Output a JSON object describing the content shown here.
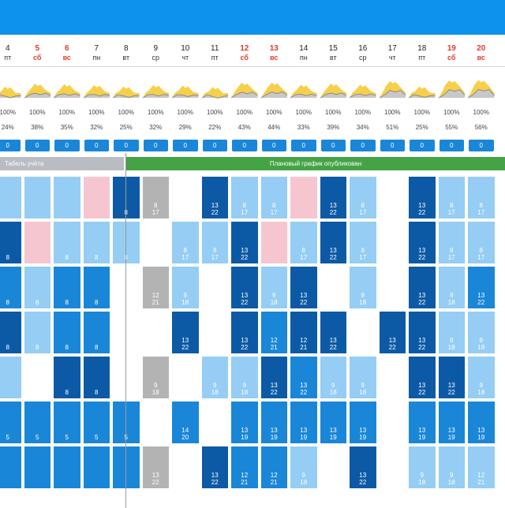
{
  "days": [
    {
      "num": "4",
      "wd": "пт",
      "red": false,
      "p1": "100%",
      "p2": "24%",
      "count": "0"
    },
    {
      "num": "5",
      "wd": "сб",
      "red": true,
      "p1": "100%",
      "p2": "38%",
      "count": "0"
    },
    {
      "num": "6",
      "wd": "вс",
      "red": true,
      "p1": "100%",
      "p2": "35%",
      "count": "0"
    },
    {
      "num": "7",
      "wd": "пн",
      "red": false,
      "p1": "100%",
      "p2": "32%",
      "count": "0"
    },
    {
      "num": "8",
      "wd": "вт",
      "red": false,
      "p1": "100%",
      "p2": "25%",
      "count": "0"
    },
    {
      "num": "9",
      "wd": "ср",
      "red": false,
      "p1": "100%",
      "p2": "32%",
      "count": "0"
    },
    {
      "num": "10",
      "wd": "чт",
      "red": false,
      "p1": "100%",
      "p2": "29%",
      "count": "0"
    },
    {
      "num": "11",
      "wd": "пт",
      "red": false,
      "p1": "100%",
      "p2": "22%",
      "count": "0"
    },
    {
      "num": "12",
      "wd": "сб",
      "red": true,
      "p1": "100%",
      "p2": "43%",
      "count": "0"
    },
    {
      "num": "13",
      "wd": "вс",
      "red": true,
      "p1": "100%",
      "p2": "44%",
      "count": "0"
    },
    {
      "num": "14",
      "wd": "пн",
      "red": false,
      "p1": "100%",
      "p2": "33%",
      "count": "0"
    },
    {
      "num": "15",
      "wd": "вт",
      "red": false,
      "p1": "100%",
      "p2": "39%",
      "count": "0"
    },
    {
      "num": "16",
      "wd": "ср",
      "red": false,
      "p1": "100%",
      "p2": "34%",
      "count": "0"
    },
    {
      "num": "17",
      "wd": "чт",
      "red": false,
      "p1": "100%",
      "p2": "51%",
      "count": "0"
    },
    {
      "num": "18",
      "wd": "пт",
      "red": false,
      "p1": "100%",
      "p2": "25%",
      "count": "0"
    },
    {
      "num": "19",
      "wd": "сб",
      "red": true,
      "p1": "100%",
      "p2": "55%",
      "count": "0"
    },
    {
      "num": "20",
      "wd": "вс",
      "red": true,
      "p1": "100%",
      "p2": "56%",
      "count": "0"
    }
  ],
  "leftEdge": {
    "p1": "%",
    "count": "0"
  },
  "banners": {
    "timesheet": "Табель учёта",
    "plan": "Плановый график опубликован"
  },
  "legend": {
    "D": "#0c5aa6",
    "M": "#1a86d8",
    "L": "#95cdf4",
    "P": "#f6c6d0",
    "W": "#ffffff",
    "G": "#b3b3b3"
  },
  "rows": [
    [
      "L",
      "L",
      "L",
      "P",
      "D:8",
      "G:8\n17",
      "W",
      "D:13\n22",
      "L:8\n17",
      "L:8\n17",
      "P",
      "D:13\n22",
      "L:8\n17",
      "W",
      "D:13\n22",
      "L:8\n17",
      "L:8\n17"
    ],
    [
      "D:8",
      "P",
      "L:8",
      "L:8",
      "L:8",
      "W",
      "L:8\n17",
      "L:8\n17",
      "D:13\n22",
      "P",
      "L:8\n17",
      "D:13\n22",
      "L:8\n17",
      "W",
      "D:13\n22",
      "L:8\n17",
      "L:8\n17"
    ],
    [
      "M:8",
      "L:8",
      "M:8",
      "M:8",
      "W",
      "G:12\n21",
      "L:9\n18",
      "W",
      "D:13\n22",
      "L:9\n18",
      "D:13\n22",
      "W",
      "L:9\n18",
      "W",
      "D:13\n22",
      "L:9\n18",
      "M:13\n22"
    ],
    [
      "D:8",
      "L:8",
      "M:8",
      "M:8",
      "W",
      "W",
      "D:13\n22",
      "W",
      "D:13\n22",
      "M:12\n21",
      "D:12\n21",
      "D:13\n22",
      "W",
      "D:13\n22",
      "D:13\n22",
      "L:9\n18",
      "L:9\n18"
    ],
    [
      "L",
      "W",
      "D:8",
      "D:8",
      "W",
      "G:9\n18",
      "W",
      "L:9\n18",
      "L:9\n18",
      "D:13\n22",
      "M:13\n22",
      "L:9\n18",
      "L:9\n18",
      "W",
      "D:13\n22",
      "D:13\n22",
      "L:9\n18"
    ],
    [
      "M:5",
      "M:5",
      "M:5",
      "M:5",
      "M:5",
      "W",
      "M:14\n20",
      "W",
      "M:13\n19",
      "M:13\n19",
      "M:13\n19",
      "M:13\n19",
      "M:13\n19",
      "W",
      "M:13\n19",
      "M:13\n19",
      "M:13\n19"
    ],
    [
      "M",
      "M",
      "M",
      "M",
      "M",
      "G:13\n22",
      "W",
      "D:13\n22",
      "M:12\n21",
      "M:12\n21",
      "L:9\n18",
      "W",
      "D:13\n22",
      "W",
      "L:9\n18",
      "L:9\n18",
      "L:12\n21"
    ]
  ],
  "area": {
    "color_fill": "#f6d04a",
    "color_line": "#8a8a8a",
    "color_gray": "#c8c8c8"
  }
}
